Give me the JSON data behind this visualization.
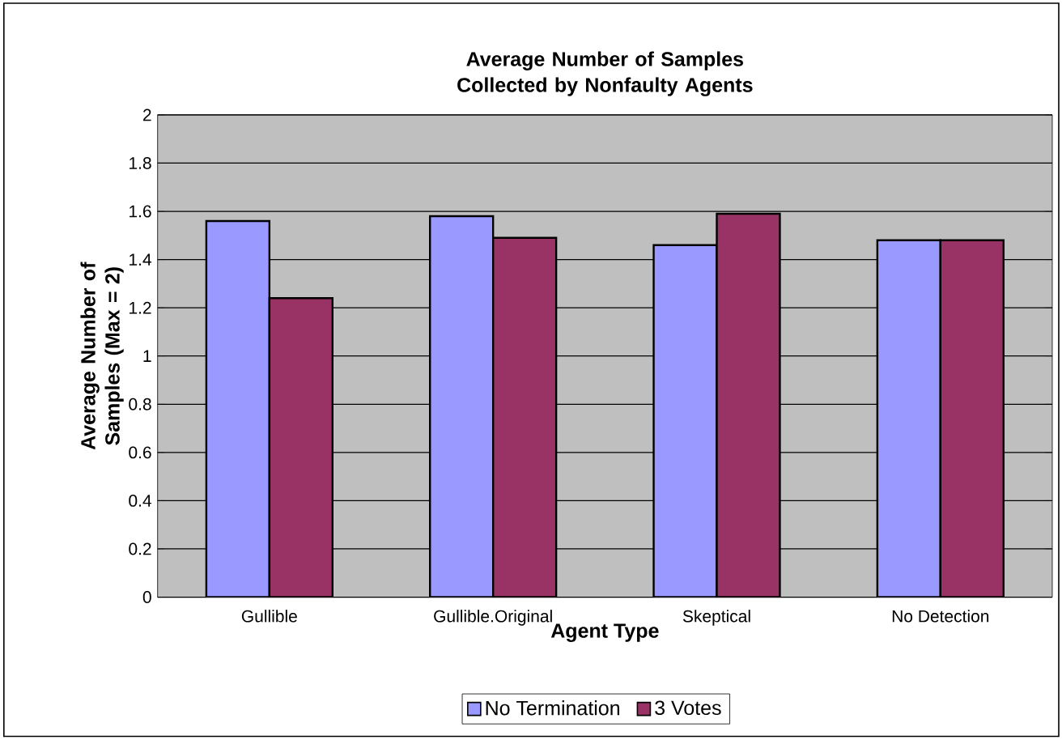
{
  "chart_data": {
    "type": "bar",
    "title": "Average Number of Samples Collected by Nonfaulty Agents",
    "xlabel": "Agent Type",
    "ylabel": "Average Number of Samples (Max = 2)",
    "categories": [
      "Gullible",
      "Gullible.Original",
      "Skeptical",
      "No Detection"
    ],
    "series": [
      {
        "name": "No Termination",
        "color": "#9999ff",
        "values": [
          1.56,
          1.58,
          1.46,
          1.48
        ]
      },
      {
        "name": "3 Votes",
        "color": "#993366",
        "values": [
          1.24,
          1.49,
          1.59,
          1.48
        ]
      }
    ],
    "ylim": [
      0,
      2
    ],
    "yticks": [
      0,
      0.2,
      0.4,
      0.6,
      0.8,
      1,
      1.2,
      1.4,
      1.6,
      1.8,
      2
    ],
    "grid": "y",
    "legend": "bottom"
  }
}
